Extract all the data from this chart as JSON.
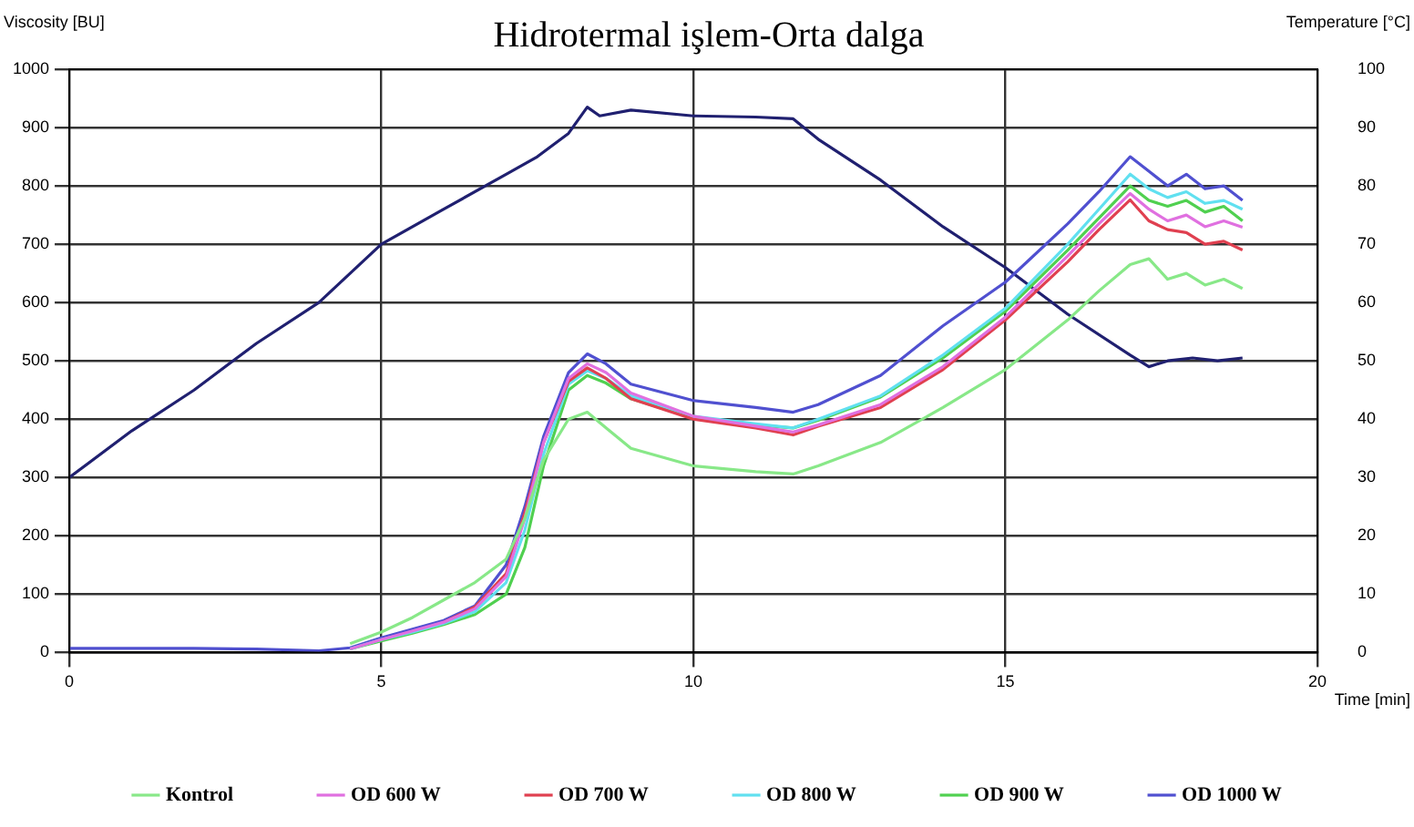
{
  "chart_data": {
    "type": "line",
    "title": "Hidrotermal işlem-Orta dalga",
    "xlabel": "Time [min]",
    "ylabel": "Viscosity [BU]",
    "y2label": "Temperature [°C]",
    "x": [
      0,
      1,
      2,
      3,
      4,
      4.5,
      5,
      5.5,
      6,
      6.5,
      7,
      7.3,
      7.6,
      8,
      8.3,
      8.6,
      9,
      10,
      11,
      11.6,
      12,
      13,
      14,
      15,
      16,
      16.5,
      17,
      17.3,
      17.6,
      17.9,
      18.2,
      18.5,
      18.8
    ],
    "series": [
      {
        "name": "Kontrol",
        "color": "#88e888",
        "values": [
          null,
          null,
          null,
          null,
          null,
          15,
          35,
          60,
          90,
          120,
          160,
          230,
          330,
          400,
          412,
          385,
          350,
          320,
          310,
          306,
          320,
          360,
          420,
          485,
          570,
          620,
          665,
          675,
          640,
          650,
          630,
          640,
          624
        ]
      },
      {
        "name": "OD 600 W",
        "color": "#e070e0",
        "values": [
          null,
          null,
          null,
          null,
          null,
          6,
          22,
          37,
          52,
          75,
          130,
          230,
          360,
          470,
          495,
          480,
          445,
          405,
          388,
          378,
          390,
          425,
          490,
          575,
          680,
          735,
          787,
          760,
          740,
          750,
          730,
          740,
          729
        ]
      },
      {
        "name": "OD 700 W",
        "color": "#e04050",
        "values": [
          null,
          null,
          null,
          null,
          null,
          null,
          null,
          null,
          52,
          78,
          135,
          240,
          360,
          465,
          488,
          470,
          435,
          400,
          385,
          373,
          388,
          420,
          485,
          570,
          670,
          725,
          776,
          740,
          725,
          720,
          700,
          705,
          690
        ]
      },
      {
        "name": "OD 800 W",
        "color": "#60e0f0",
        "values": [
          null,
          null,
          null,
          null,
          null,
          6,
          22,
          35,
          50,
          70,
          120,
          210,
          340,
          460,
          483,
          470,
          440,
          405,
          392,
          385,
          400,
          440,
          510,
          590,
          700,
          760,
          820,
          795,
          780,
          790,
          770,
          775,
          760
        ]
      },
      {
        "name": "OD 900 W",
        "color": "#50d050",
        "values": [
          null,
          null,
          null,
          null,
          null,
          6,
          20,
          33,
          48,
          65,
          100,
          180,
          320,
          450,
          475,
          462,
          435,
          402,
          390,
          385,
          398,
          438,
          505,
          585,
          690,
          745,
          800,
          775,
          765,
          775,
          755,
          765,
          740
        ]
      },
      {
        "name": "OD 1000 W",
        "color": "#5050d0",
        "values": [
          7,
          7,
          7,
          6,
          3,
          8,
          25,
          40,
          55,
          80,
          150,
          250,
          370,
          480,
          512,
          495,
          460,
          432,
          420,
          412,
          425,
          475,
          560,
          635,
          735,
          790,
          850,
          825,
          800,
          820,
          795,
          800,
          775
        ]
      },
      {
        "axis": "y2",
        "color": "#202070",
        "x": [
          0,
          1,
          2,
          3,
          4,
          5,
          6,
          7,
          7.5,
          8,
          8.3,
          8.5,
          9,
          10,
          11,
          11.6,
          12,
          13,
          14,
          15,
          16,
          17,
          17.3,
          17.6,
          18,
          18.4,
          18.8
        ],
        "values": [
          30,
          38,
          45,
          53,
          60,
          70,
          76,
          82,
          85,
          89,
          93.5,
          92,
          93,
          92,
          91.8,
          91.5,
          88,
          81,
          73,
          66,
          58,
          51,
          49,
          50,
          50.5,
          50,
          50.5
        ]
      }
    ],
    "xlim": [
      0,
      20
    ],
    "xticks": [
      0,
      5,
      10,
      15,
      20
    ],
    "ylim": [
      0,
      1000
    ],
    "yticks": [
      0,
      100,
      200,
      300,
      400,
      500,
      600,
      700,
      800,
      900,
      1000
    ],
    "y2lim": [
      0,
      100
    ],
    "y2ticks": [
      0,
      10,
      20,
      30,
      40,
      50,
      60,
      70,
      80,
      90,
      100
    ],
    "grid": true,
    "legend": "bottom",
    "marker": "none",
    "line_style": "solid"
  }
}
